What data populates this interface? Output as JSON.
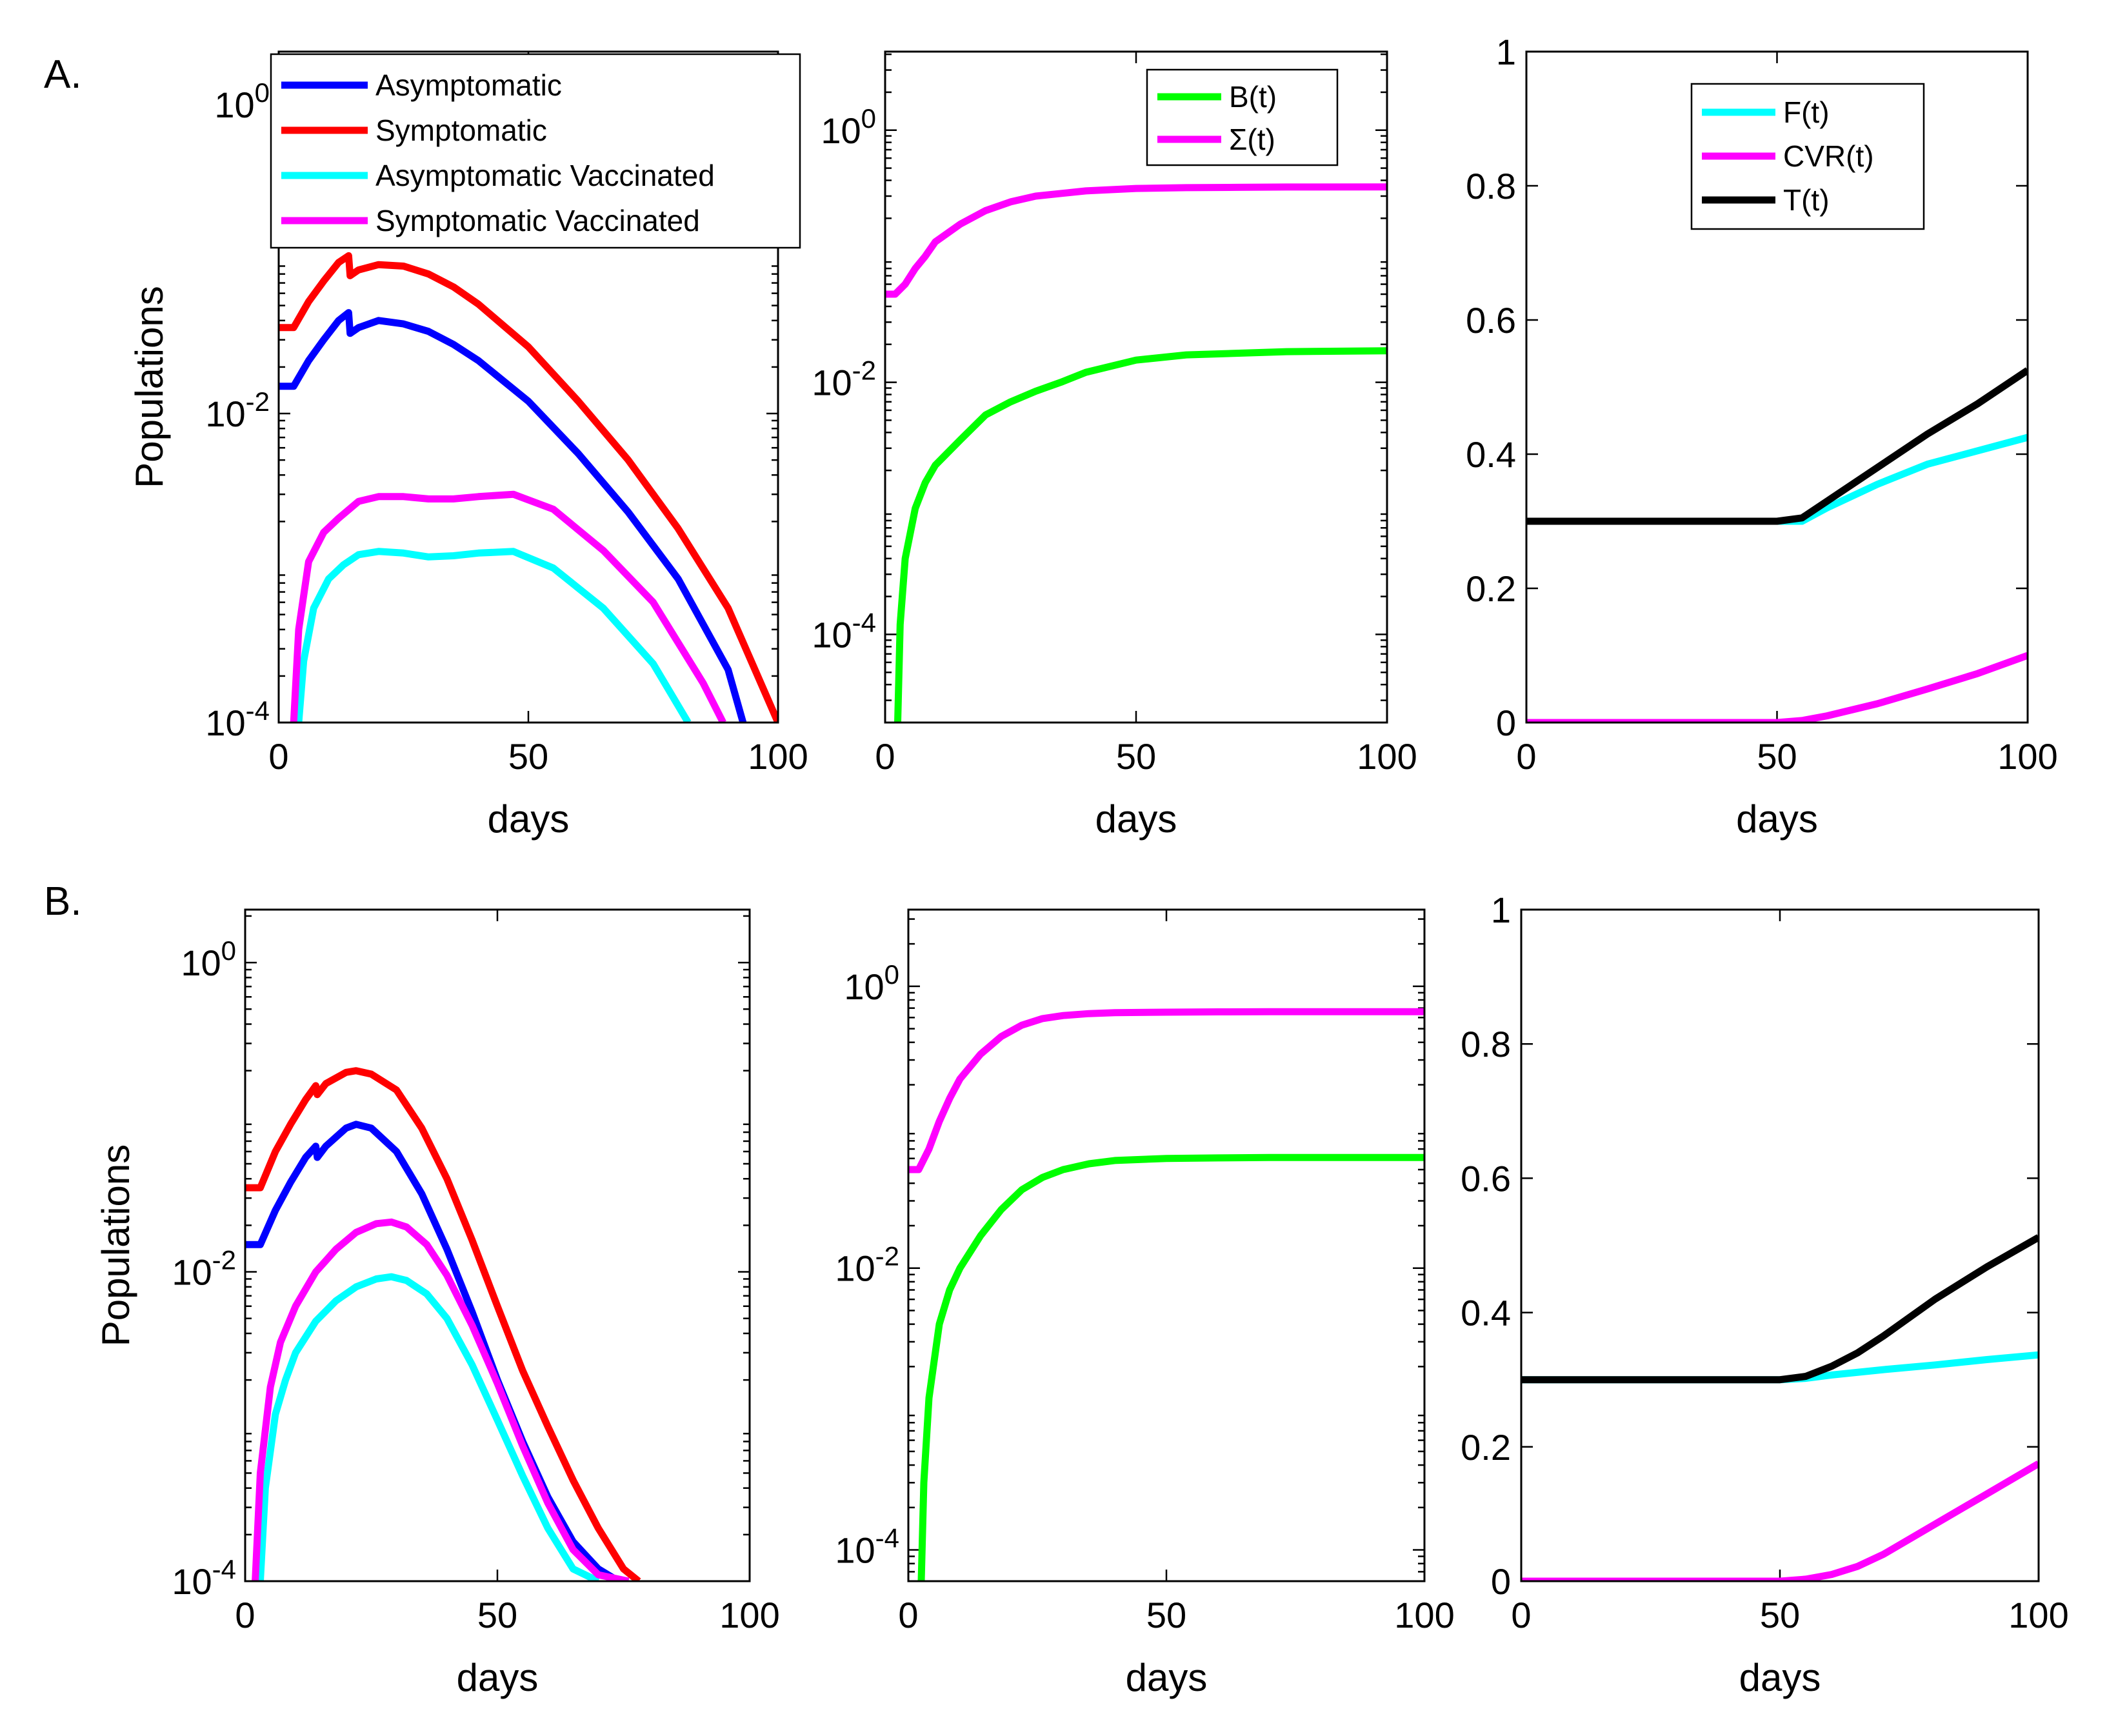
{
  "panel_labels": [
    "A.",
    "B."
  ],
  "chart_data": [
    {
      "id": "A1",
      "type": "line",
      "panel": "A.",
      "yscale": "log",
      "xlabel": "days",
      "ylabel": "Populations",
      "xlim": [
        0,
        100
      ],
      "ylim": [
        0.0001,
        2.2
      ],
      "xticks": [
        0,
        50,
        100
      ],
      "xtick_labels": [
        "0",
        "50",
        "100"
      ],
      "yticks": [
        0.0001,
        0.01,
        1
      ],
      "ytick_labels": [
        [
          "10",
          "-4"
        ],
        [
          "10",
          "-2"
        ],
        [
          "10",
          "0"
        ]
      ],
      "legend": {
        "position": "top-left"
      },
      "series": [
        {
          "name": "Asymptomatic",
          "color": "#0000ff",
          "x": [
            0,
            3,
            6,
            9,
            12,
            14,
            14.3,
            16,
            20,
            25,
            30,
            35,
            40,
            50,
            60,
            70,
            80,
            90,
            93
          ],
          "y": [
            0.015,
            0.015,
            0.022,
            0.03,
            0.04,
            0.045,
            0.033,
            0.036,
            0.04,
            0.038,
            0.034,
            0.028,
            0.022,
            0.012,
            0.0055,
            0.0023,
            0.00085,
            0.00022,
            0.0001
          ]
        },
        {
          "name": "Symptomatic",
          "color": "#ff0000",
          "x": [
            0,
            3,
            6,
            9,
            12,
            14,
            14.3,
            16,
            20,
            25,
            30,
            35,
            40,
            50,
            60,
            70,
            80,
            90,
            100
          ],
          "y": [
            0.036,
            0.036,
            0.053,
            0.072,
            0.095,
            0.105,
            0.078,
            0.085,
            0.092,
            0.09,
            0.08,
            0.066,
            0.051,
            0.027,
            0.012,
            0.005,
            0.0018,
            0.00055,
            0.0001
          ]
        },
        {
          "name": "Asymptomatic Vaccinated",
          "color": "#00ffff",
          "x": [
            4,
            5,
            7,
            10,
            13,
            16,
            20,
            25,
            30,
            35,
            40,
            47,
            55,
            65,
            75,
            82
          ],
          "y": [
            0.0001,
            0.00025,
            0.00055,
            0.00085,
            0.00105,
            0.00122,
            0.00128,
            0.00125,
            0.00118,
            0.0012,
            0.00125,
            0.00128,
            0.001,
            0.00055,
            0.00024,
            0.0001
          ]
        },
        {
          "name": "Symptomatic Vaccinated",
          "color": "#ff00ff",
          "x": [
            3,
            4,
            6,
            9,
            12,
            16,
            20,
            25,
            30,
            35,
            40,
            47,
            55,
            65,
            75,
            85,
            89
          ],
          "y": [
            0.0001,
            0.0004,
            0.0011,
            0.0017,
            0.0021,
            0.0027,
            0.0029,
            0.0029,
            0.0028,
            0.0028,
            0.0029,
            0.003,
            0.0024,
            0.0013,
            0.0006,
            0.00018,
            0.0001
          ]
        }
      ]
    },
    {
      "id": "A2",
      "type": "line",
      "panel": "A.",
      "yscale": "log",
      "xlabel": "days",
      "ylabel": "",
      "xlim": [
        0,
        100
      ],
      "ylim": [
        2e-05,
        4.2
      ],
      "xticks": [
        0,
        50,
        100
      ],
      "xtick_labels": [
        "0",
        "50",
        "100"
      ],
      "yticks": [
        0.0001,
        0.01,
        1
      ],
      "ytick_labels": [
        [
          "10",
          "-4"
        ],
        [
          "10",
          "-2"
        ],
        [
          "10",
          "0"
        ]
      ],
      "legend": {
        "position": "top-right"
      },
      "series": [
        {
          "name": "B(t)",
          "color": "#00ff00",
          "x": [
            2.5,
            3,
            4,
            6,
            8,
            10,
            15,
            20,
            25,
            30,
            35,
            40,
            50,
            60,
            70,
            80,
            100
          ],
          "y": [
            2e-05,
            0.00012,
            0.0004,
            0.001,
            0.0016,
            0.0022,
            0.0035,
            0.0055,
            0.007,
            0.0085,
            0.01,
            0.012,
            0.015,
            0.0165,
            0.017,
            0.0175,
            0.0178
          ]
        },
        {
          "name": "Σ(t)",
          "color": "#ff00ff",
          "x": [
            0,
            2,
            4,
            6,
            8,
            10,
            15,
            20,
            25,
            30,
            40,
            50,
            60,
            70,
            80,
            100
          ],
          "y": [
            0.05,
            0.05,
            0.06,
            0.08,
            0.1,
            0.13,
            0.18,
            0.23,
            0.27,
            0.3,
            0.33,
            0.345,
            0.35,
            0.352,
            0.354,
            0.355
          ]
        }
      ]
    },
    {
      "id": "A3",
      "type": "line",
      "panel": "A.",
      "yscale": "linear",
      "xlabel": "days",
      "ylabel": "",
      "xlim": [
        0,
        100
      ],
      "ylim": [
        0,
        1
      ],
      "xticks": [
        0,
        50,
        100
      ],
      "xtick_labels": [
        "0",
        "50",
        "100"
      ],
      "yticks": [
        0,
        0.2,
        0.4,
        0.6,
        0.8,
        1
      ],
      "ytick_labels": [
        "0",
        "0.2",
        "0.4",
        "0.6",
        "0.8",
        "1"
      ],
      "legend": {
        "position": "top-right"
      },
      "series": [
        {
          "name": "F(t)",
          "color": "#00ffff",
          "x": [
            0,
            50,
            55,
            60,
            70,
            80,
            90,
            100
          ],
          "y": [
            0.3,
            0.3,
            0.3,
            0.32,
            0.355,
            0.385,
            0.405,
            0.425
          ]
        },
        {
          "name": "CVR(t)",
          "color": "#ff00ff",
          "x": [
            0,
            50,
            55,
            60,
            70,
            80,
            90,
            100
          ],
          "y": [
            0,
            0,
            0.003,
            0.01,
            0.028,
            0.05,
            0.073,
            0.1
          ]
        },
        {
          "name": "T(t)",
          "color": "#000000",
          "x": [
            0,
            50,
            55,
            60,
            70,
            80,
            90,
            100
          ],
          "y": [
            0.3,
            0.3,
            0.305,
            0.33,
            0.38,
            0.43,
            0.475,
            0.525
          ]
        }
      ]
    },
    {
      "id": "B1",
      "type": "line",
      "panel": "B.",
      "yscale": "log",
      "xlabel": "days",
      "ylabel": "Populations",
      "xlim": [
        0,
        100
      ],
      "ylim": [
        0.0001,
        2.2
      ],
      "xticks": [
        0,
        50,
        100
      ],
      "xtick_labels": [
        "0",
        "50",
        "100"
      ],
      "yticks": [
        0.0001,
        0.01,
        1
      ],
      "ytick_labels": [
        [
          "10",
          "-4"
        ],
        [
          "10",
          "-2"
        ],
        [
          "10",
          "0"
        ]
      ],
      "legend": null,
      "series": [
        {
          "name": "Asymptomatic",
          "color": "#0000ff",
          "x": [
            0,
            3,
            6,
            9,
            12,
            14,
            14.3,
            16,
            20,
            22,
            25,
            30,
            35,
            40,
            45,
            50,
            55,
            60,
            65,
            70,
            74
          ],
          "y": [
            0.015,
            0.015,
            0.025,
            0.038,
            0.055,
            0.065,
            0.055,
            0.065,
            0.085,
            0.09,
            0.085,
            0.06,
            0.032,
            0.014,
            0.0055,
            0.002,
            0.0008,
            0.00035,
            0.00018,
            0.00012,
            0.0001
          ]
        },
        {
          "name": "Symptomatic",
          "color": "#ff0000",
          "x": [
            0,
            3,
            6,
            9,
            12,
            14,
            14.3,
            16,
            20,
            22,
            25,
            30,
            35,
            40,
            45,
            50,
            55,
            60,
            65,
            70,
            75,
            78
          ],
          "y": [
            0.035,
            0.035,
            0.06,
            0.09,
            0.13,
            0.16,
            0.14,
            0.165,
            0.195,
            0.2,
            0.19,
            0.15,
            0.085,
            0.04,
            0.016,
            0.006,
            0.0023,
            0.001,
            0.00045,
            0.00022,
            0.00012,
            0.0001
          ]
        },
        {
          "name": "Asymptomatic Vaccinated",
          "color": "#00ffff",
          "x": [
            3,
            4,
            6,
            8,
            10,
            14,
            18,
            22,
            26,
            29,
            32,
            36,
            40,
            45,
            50,
            55,
            60,
            65,
            70
          ],
          "y": [
            0.0001,
            0.0004,
            0.0012,
            0.002,
            0.003,
            0.0048,
            0.0065,
            0.008,
            0.009,
            0.0093,
            0.0088,
            0.0072,
            0.005,
            0.0025,
            0.0011,
            0.00048,
            0.00022,
            0.00012,
            0.0001
          ]
        },
        {
          "name": "Symptomatic Vaccinated",
          "color": "#ff00ff",
          "x": [
            2,
            3,
            5,
            7,
            10,
            14,
            18,
            22,
            26,
            29,
            32,
            36,
            40,
            45,
            50,
            55,
            60,
            65,
            70,
            76
          ],
          "y": [
            0.0001,
            0.0005,
            0.0018,
            0.0035,
            0.006,
            0.01,
            0.014,
            0.018,
            0.0205,
            0.021,
            0.0195,
            0.015,
            0.0095,
            0.0045,
            0.0019,
            0.00075,
            0.00032,
            0.00016,
            0.00011,
            0.0001
          ]
        }
      ]
    },
    {
      "id": "B2",
      "type": "line",
      "panel": "B.",
      "yscale": "log",
      "xlabel": "days",
      "ylabel": "",
      "xlim": [
        0,
        100
      ],
      "ylim": [
        6e-05,
        3.5
      ],
      "xticks": [
        0,
        50,
        100
      ],
      "xtick_labels": [
        "0",
        "50",
        "100"
      ],
      "yticks": [
        0.0001,
        0.01,
        1
      ],
      "ytick_labels": [
        [
          "10",
          "-4"
        ],
        [
          "10",
          "-2"
        ],
        [
          "10",
          "0"
        ]
      ],
      "legend": null,
      "series": [
        {
          "name": "B(t)",
          "color": "#00ff00",
          "x": [
            2.5,
            3,
            4,
            6,
            8,
            10,
            14,
            18,
            22,
            26,
            30,
            35,
            40,
            50,
            60,
            70,
            80,
            100
          ],
          "y": [
            6e-05,
            0.0003,
            0.0012,
            0.004,
            0.007,
            0.01,
            0.017,
            0.026,
            0.036,
            0.044,
            0.05,
            0.055,
            0.058,
            0.06,
            0.0605,
            0.061,
            0.061,
            0.061
          ]
        },
        {
          "name": "Σ(t)",
          "color": "#ff00ff",
          "x": [
            0,
            2,
            4,
            6,
            8,
            10,
            14,
            18,
            22,
            26,
            30,
            35,
            40,
            50,
            60,
            70,
            80,
            100
          ],
          "y": [
            0.05,
            0.05,
            0.07,
            0.11,
            0.16,
            0.22,
            0.33,
            0.44,
            0.53,
            0.59,
            0.62,
            0.64,
            0.65,
            0.655,
            0.658,
            0.66,
            0.66,
            0.66
          ]
        }
      ]
    },
    {
      "id": "B3",
      "type": "line",
      "panel": "B.",
      "yscale": "linear",
      "xlabel": "days",
      "ylabel": "",
      "xlim": [
        0,
        100
      ],
      "ylim": [
        0,
        1
      ],
      "xticks": [
        0,
        50,
        100
      ],
      "xtick_labels": [
        "0",
        "50",
        "100"
      ],
      "yticks": [
        0,
        0.2,
        0.4,
        0.6,
        0.8,
        1
      ],
      "ytick_labels": [
        "0",
        "0.2",
        "0.4",
        "0.6",
        "0.8",
        "1"
      ],
      "legend": null,
      "series": [
        {
          "name": "F(t)",
          "color": "#00ffff",
          "x": [
            0,
            50,
            55,
            60,
            70,
            80,
            90,
            100
          ],
          "y": [
            0.3,
            0.3,
            0.302,
            0.307,
            0.315,
            0.322,
            0.33,
            0.337
          ]
        },
        {
          "name": "CVR(t)",
          "color": "#ff00ff",
          "x": [
            0,
            50,
            55,
            60,
            65,
            70,
            80,
            90,
            100
          ],
          "y": [
            0,
            0,
            0.003,
            0.01,
            0.022,
            0.04,
            0.085,
            0.13,
            0.175
          ]
        },
        {
          "name": "T(t)",
          "color": "#000000",
          "x": [
            0,
            50,
            55,
            60,
            65,
            70,
            80,
            90,
            100
          ],
          "y": [
            0.3,
            0.3,
            0.305,
            0.32,
            0.34,
            0.365,
            0.42,
            0.468,
            0.512
          ]
        }
      ]
    }
  ]
}
